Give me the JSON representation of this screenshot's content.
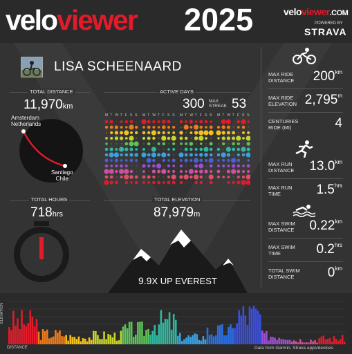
{
  "header": {
    "logo_white": "velo",
    "logo_red": "viewer",
    "year": "2025",
    "brand_small": "veloviewer.com",
    "powered_by": "POWERED BY",
    "strava": "STRAVA"
  },
  "profile": {
    "name": "LISA SCHEENAARD"
  },
  "total_distance": {
    "label": "TOTAL DISTANCE",
    "value": "11,970",
    "unit": "km",
    "from": "Amsterdam\nNetherlands",
    "to": "Santiago\nChile"
  },
  "active_days": {
    "label": "ACTIVE DAYS",
    "value": "300",
    "streak_label": "MAX\nSTREAK",
    "streak_value": "53",
    "weekday_header": "M T W T F S S"
  },
  "total_hours": {
    "label": "TOTAL HOURS",
    "value": "718",
    "unit": "hrs"
  },
  "total_elevation": {
    "label": "TOTAL ELEVATION",
    "value": "87,979",
    "unit": "m",
    "everest_value": "9.9",
    "everest_text": "X UP EVEREST"
  },
  "right_stats": [
    {
      "label": "MAX RIDE\nDISTANCE",
      "value": "200",
      "unit": "km"
    },
    {
      "label": "MAX RIDE\nELEVATION",
      "value": "2,795",
      "unit": "m"
    },
    {
      "label": "CENTURIES\nRIDE (mi)",
      "value": "4",
      "unit": ""
    },
    {
      "label": "MAX RUN\nDISTANCE",
      "value": "13.0",
      "unit": "km"
    },
    {
      "label": "MAX RUN\nTIME",
      "value": "1.5",
      "unit": "hrs"
    },
    {
      "label": "MAX SWIM\nDISTANCE",
      "value": "0.22",
      "unit": "km"
    },
    {
      "label": "MAX SWIM\nTIME",
      "value": "0.2",
      "unit": "hrs"
    },
    {
      "label": "TOTAL SWIM\nDISTANCE",
      "value": "0",
      "unit": "km"
    }
  ],
  "footer": {
    "elevation_label": "ELEVATION",
    "distance_label": "DISTANCE",
    "source": "Data from Garmin, Strava apps/devices"
  },
  "colors": {
    "red": "#e11b2a",
    "bg": "#333333",
    "header": "#2a2a2a"
  },
  "icons": [
    "bike-icon",
    "run-icon",
    "swim-icon",
    "stopwatch-icon",
    "mountain-icon",
    "avatar"
  ]
}
